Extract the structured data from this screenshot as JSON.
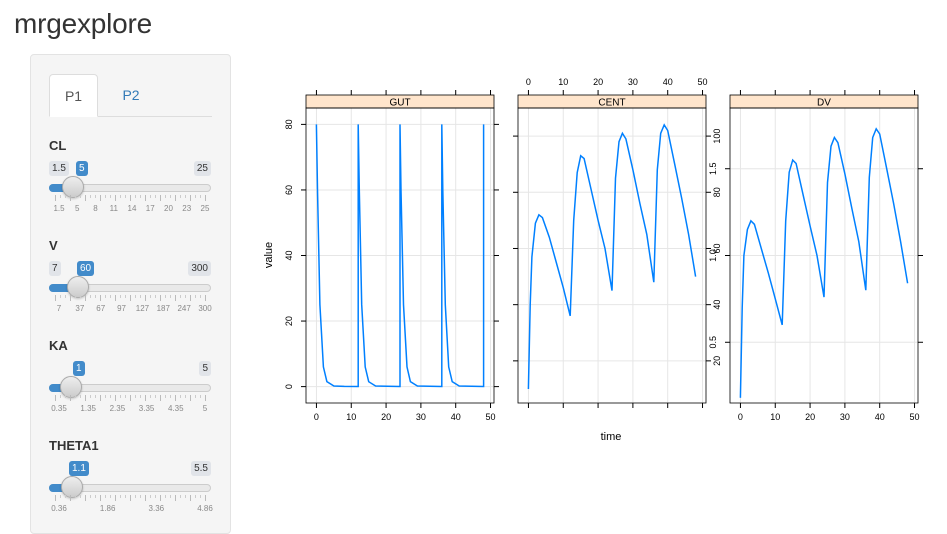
{
  "app": {
    "title": "mrgexplore"
  },
  "tabs": [
    {
      "label": "P1",
      "active": true
    },
    {
      "label": "P2",
      "active": false
    }
  ],
  "sliders": [
    {
      "label": "CL",
      "min_label": "1.5",
      "max_label": "25",
      "value_label": "5",
      "value_fraction": 0.149,
      "grid": [
        "1.5",
        "5",
        "8",
        "11",
        "14",
        "17",
        "20",
        "23",
        "25"
      ]
    },
    {
      "label": "V",
      "min_label": "7",
      "max_label": "300",
      "value_label": "60",
      "value_fraction": 0.181,
      "grid": [
        "7",
        "37",
        "67",
        "97",
        "127",
        "187",
        "247",
        "300"
      ]
    },
    {
      "label": "KA",
      "min_label": "",
      "max_label": "5",
      "value_label": "1",
      "value_fraction": 0.138,
      "grid": [
        "0.35",
        "1.35",
        "2.35",
        "3.35",
        "4.35",
        "5"
      ]
    },
    {
      "label": "THETA1",
      "min_label": "",
      "max_label": "5.5",
      "value_label": "1.1",
      "value_fraction": 0.144,
      "grid": [
        "0.36",
        "1.86",
        "3.36",
        "4.86"
      ]
    }
  ],
  "chart_data": {
    "type": "line",
    "ylabel": "value",
    "xlabel": "time",
    "panels": [
      {
        "name": "GUT",
        "xlim": [
          -3,
          51
        ],
        "ylim": [
          -5,
          85
        ],
        "x_ticks": [
          0,
          10,
          20,
          30,
          40,
          50
        ],
        "y_ticks": [
          0,
          20,
          40,
          60,
          80
        ],
        "x_axis_side": "bottom",
        "y_axis_side": "left",
        "points": [
          [
            0,
            80
          ],
          [
            0.3,
            60
          ],
          [
            1,
            25
          ],
          [
            2,
            6
          ],
          [
            3,
            1.5
          ],
          [
            5,
            0.2
          ],
          [
            8,
            0.05
          ],
          [
            12,
            0.02
          ],
          [
            12,
            80
          ],
          [
            12.3,
            60
          ],
          [
            13,
            25
          ],
          [
            14,
            6
          ],
          [
            15,
            1.5
          ],
          [
            17,
            0.2
          ],
          [
            24,
            0.02
          ],
          [
            24,
            80
          ],
          [
            24.3,
            60
          ],
          [
            25,
            25
          ],
          [
            26,
            6
          ],
          [
            27,
            1.5
          ],
          [
            29,
            0.2
          ],
          [
            36,
            0.02
          ],
          [
            36,
            80
          ],
          [
            36.3,
            60
          ],
          [
            37,
            25
          ],
          [
            38,
            6
          ],
          [
            39,
            1.5
          ],
          [
            41,
            0.2
          ],
          [
            48,
            0.02
          ],
          [
            48,
            80
          ]
        ]
      },
      {
        "name": "CENT",
        "xlim": [
          -3,
          51
        ],
        "ylim": [
          5,
          110
        ],
        "x_ticks": [
          0,
          10,
          20,
          30,
          40,
          50
        ],
        "y_ticks": [
          20,
          40,
          60,
          80,
          100
        ],
        "x_axis_side": "top",
        "y_axis_side": "right",
        "points": [
          [
            0,
            10
          ],
          [
            0.5,
            40
          ],
          [
            1,
            57
          ],
          [
            2,
            69
          ],
          [
            3,
            72
          ],
          [
            4,
            71
          ],
          [
            6,
            64
          ],
          [
            8,
            55
          ],
          [
            10,
            46
          ],
          [
            12,
            36
          ],
          [
            13,
            70
          ],
          [
            14,
            87
          ],
          [
            15,
            93
          ],
          [
            16,
            92
          ],
          [
            18,
            81
          ],
          [
            20,
            70
          ],
          [
            22,
            60
          ],
          [
            24,
            45
          ],
          [
            25,
            85
          ],
          [
            26,
            98
          ],
          [
            27,
            101
          ],
          [
            28,
            99
          ],
          [
            30,
            88
          ],
          [
            32,
            76
          ],
          [
            34,
            65
          ],
          [
            36,
            48
          ],
          [
            37,
            88
          ],
          [
            38,
            101
          ],
          [
            39,
            104
          ],
          [
            40,
            102
          ],
          [
            42,
            90
          ],
          [
            44,
            78
          ],
          [
            46,
            65
          ],
          [
            48,
            50
          ]
        ]
      },
      {
        "name": "DV",
        "xlim": [
          -3,
          51
        ],
        "ylim": [
          0.15,
          1.85
        ],
        "x_ticks": [
          0,
          10,
          20,
          30,
          40,
          50
        ],
        "y_ticks": [
          0.5,
          1.0,
          1.5
        ],
        "x_axis_side": "bottom",
        "y_axis_side": "left",
        "points": [
          [
            0,
            0.18
          ],
          [
            0.5,
            0.7
          ],
          [
            1,
            1.0
          ],
          [
            2,
            1.15
          ],
          [
            3,
            1.2
          ],
          [
            4,
            1.18
          ],
          [
            6,
            1.04
          ],
          [
            8,
            0.9
          ],
          [
            10,
            0.75
          ],
          [
            12,
            0.6
          ],
          [
            13,
            1.2
          ],
          [
            14,
            1.48
          ],
          [
            15,
            1.55
          ],
          [
            16,
            1.53
          ],
          [
            18,
            1.35
          ],
          [
            20,
            1.17
          ],
          [
            22,
            1.0
          ],
          [
            24,
            0.76
          ],
          [
            25,
            1.42
          ],
          [
            26,
            1.63
          ],
          [
            27,
            1.68
          ],
          [
            28,
            1.65
          ],
          [
            30,
            1.47
          ],
          [
            32,
            1.27
          ],
          [
            34,
            1.08
          ],
          [
            36,
            0.8
          ],
          [
            37,
            1.45
          ],
          [
            38,
            1.68
          ],
          [
            39,
            1.73
          ],
          [
            40,
            1.7
          ],
          [
            42,
            1.5
          ],
          [
            44,
            1.3
          ],
          [
            46,
            1.08
          ],
          [
            48,
            0.84
          ]
        ]
      }
    ],
    "line_color": "#0080ff",
    "strip_color": "#ffe5cc"
  }
}
